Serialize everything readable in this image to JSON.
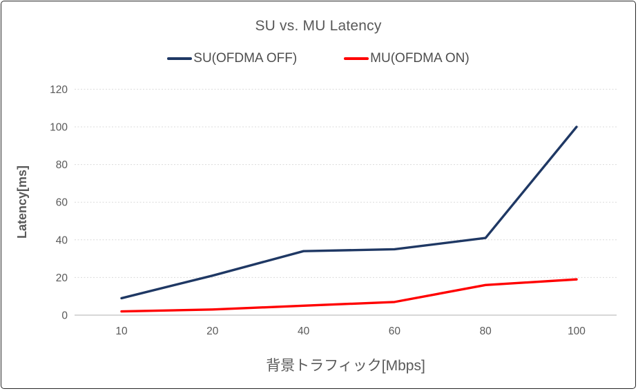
{
  "chart_data": {
    "type": "line",
    "title": "SU vs. MU Latency",
    "xlabel": "背景トラフィック[Mbps]",
    "ylabel": "Latency[ms]",
    "categories": [
      "10",
      "20",
      "40",
      "60",
      "80",
      "100"
    ],
    "yticks": [
      0,
      20,
      40,
      60,
      80,
      100,
      120
    ],
    "ylim": [
      0,
      120
    ],
    "grid": "horizontal dashed gridlines, solid baseline at 0",
    "legend_position": "top-center",
    "series": [
      {
        "name": "SU(OFDMA OFF)",
        "color": "#1f3864",
        "values": [
          9,
          21,
          34,
          35,
          41,
          100
        ]
      },
      {
        "name": "MU(OFDMA ON)",
        "color": "#ff0000",
        "values": [
          2,
          3,
          5,
          7,
          16,
          19
        ]
      }
    ],
    "colors": {
      "text": "#595959",
      "gridline": "#d9d9d9",
      "axis_line": "#bfbfbf",
      "frame_border": "#262626",
      "background": "#ffffff"
    }
  }
}
